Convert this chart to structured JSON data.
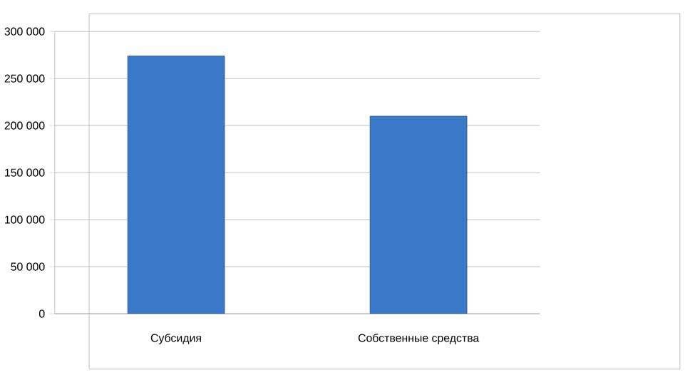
{
  "chart_data": {
    "type": "bar",
    "categories": [
      "Субсидия",
      "Собственные средства"
    ],
    "values": [
      274000,
      210000
    ],
    "color": "#3a78c8",
    "ylim": [
      0,
      300000
    ],
    "yticks": [
      {
        "value": 0,
        "label": "0"
      },
      {
        "value": 50000,
        "label": "50 000"
      },
      {
        "value": 100000,
        "label": "100 000"
      },
      {
        "value": 150000,
        "label": "150 000"
      },
      {
        "value": 200000,
        "label": "200 000"
      },
      {
        "value": 250000,
        "label": "250 000"
      },
      {
        "value": 300000,
        "label": "300 000"
      }
    ],
    "grid": "y"
  }
}
